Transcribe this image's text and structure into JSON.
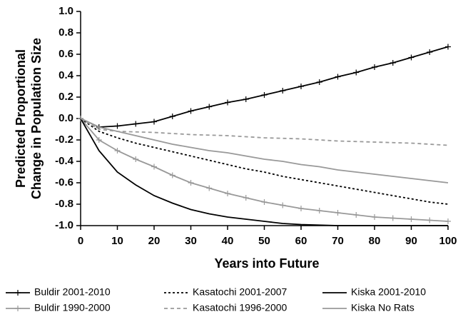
{
  "chart_data": {
    "type": "line",
    "xlabel": "Years into Future",
    "ylabel": [
      "Predicted Proportional",
      "Change in Population Size"
    ],
    "x": [
      0,
      5,
      10,
      15,
      20,
      25,
      30,
      35,
      40,
      45,
      50,
      55,
      60,
      65,
      70,
      75,
      80,
      85,
      90,
      95,
      100
    ],
    "xlim": [
      0,
      100
    ],
    "xticks": [
      0,
      10,
      20,
      30,
      40,
      50,
      60,
      70,
      80,
      90,
      100
    ],
    "ylim": [
      -1,
      1
    ],
    "yticks": [
      {
        "value": 1,
        "label": "1.0"
      },
      0.8,
      0.6,
      0.4,
      0.2,
      {
        "value": 0,
        "label": "0.0"
      },
      -0.2,
      -0.4,
      -0.6,
      -0.8,
      {
        "value": -1,
        "label": "-1.0"
      }
    ],
    "series": [
      {
        "name": "Buldir 2001-2010",
        "color": "#000000",
        "dash": "solid",
        "marker": "plus",
        "values": [
          0,
          -0.08,
          -0.07,
          -0.05,
          -0.03,
          0.02,
          0.07,
          0.11,
          0.15,
          0.18,
          0.22,
          0.26,
          0.3,
          0.34,
          0.39,
          0.43,
          0.48,
          0.52,
          0.57,
          0.62,
          0.67
        ]
      },
      {
        "name": "Buldir 1990-2000",
        "color": "#999999",
        "dash": "solid",
        "marker": "plus",
        "values": [
          0,
          -0.2,
          -0.3,
          -0.38,
          -0.45,
          -0.53,
          -0.6,
          -0.65,
          -0.7,
          -0.74,
          -0.78,
          -0.81,
          -0.84,
          -0.86,
          -0.88,
          -0.9,
          -0.92,
          -0.93,
          -0.94,
          -0.95,
          -0.96
        ]
      },
      {
        "name": "Kasatochi 2001-2007",
        "color": "#000000",
        "dash": "dotted",
        "values": [
          0,
          -0.12,
          -0.18,
          -0.23,
          -0.27,
          -0.31,
          -0.35,
          -0.39,
          -0.43,
          -0.47,
          -0.5,
          -0.54,
          -0.57,
          -0.6,
          -0.63,
          -0.66,
          -0.69,
          -0.72,
          -0.75,
          -0.78,
          -0.8
        ]
      },
      {
        "name": "Kasatochi 1996-2000",
        "color": "#999999",
        "dash": "dashed",
        "values": [
          0,
          -0.1,
          -0.12,
          -0.125,
          -0.13,
          -0.14,
          -0.15,
          -0.155,
          -0.16,
          -0.17,
          -0.18,
          -0.185,
          -0.19,
          -0.2,
          -0.21,
          -0.215,
          -0.22,
          -0.225,
          -0.23,
          -0.24,
          -0.25
        ]
      },
      {
        "name": "Kiska 2001-2010",
        "color": "#000000",
        "dash": "solid",
        "values": [
          0,
          -0.3,
          -0.5,
          -0.62,
          -0.72,
          -0.79,
          -0.85,
          -0.89,
          -0.92,
          -0.94,
          -0.96,
          -0.98,
          -0.99,
          -0.995,
          -1,
          -1,
          -1,
          -1,
          -1,
          -1,
          -1
        ]
      },
      {
        "name": "Kiska No Rats",
        "color": "#999999",
        "dash": "solid",
        "values": [
          0,
          -0.08,
          -0.12,
          -0.16,
          -0.2,
          -0.24,
          -0.27,
          -0.3,
          -0.32,
          -0.35,
          -0.38,
          -0.4,
          -0.43,
          -0.45,
          -0.48,
          -0.5,
          -0.52,
          -0.54,
          -0.56,
          -0.58,
          -0.6
        ]
      }
    ]
  }
}
